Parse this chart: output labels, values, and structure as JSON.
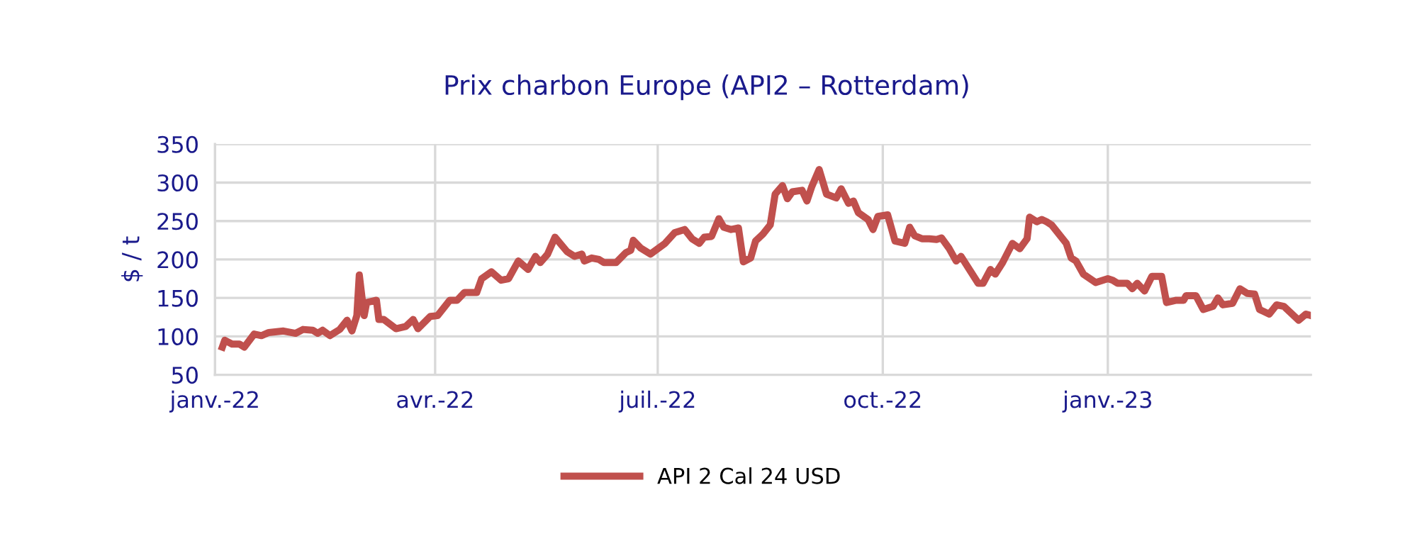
{
  "chart_data": {
    "type": "line",
    "title": "Prix charbon Europe (API2 – Rotterdam)",
    "ylabel": "$ / t",
    "x": [
      "2022-01-04",
      "2022-01-05",
      "2022-01-08",
      "2022-01-11",
      "2022-01-13",
      "2022-01-17",
      "2022-01-20",
      "2022-01-23",
      "2022-01-29",
      "2022-02-03",
      "2022-02-06",
      "2022-02-10",
      "2022-02-12",
      "2022-02-14",
      "2022-02-17",
      "2022-02-21",
      "2022-02-24",
      "2022-02-26",
      "2022-02-28",
      "2022-03-01",
      "2022-03-03",
      "2022-03-04",
      "2022-03-08",
      "2022-03-09",
      "2022-03-11",
      "2022-03-16",
      "2022-03-20",
      "2022-03-23",
      "2022-03-25",
      "2022-03-30",
      "2022-04-02",
      "2022-04-05",
      "2022-04-07",
      "2022-04-10",
      "2022-04-13",
      "2022-04-18",
      "2022-04-20",
      "2022-04-24",
      "2022-04-28",
      "2022-05-01",
      "2022-05-05",
      "2022-05-09",
      "2022-05-12",
      "2022-05-14",
      "2022-05-17",
      "2022-05-20",
      "2022-05-25",
      "2022-05-28",
      "2022-05-31",
      "2022-06-01",
      "2022-06-04",
      "2022-06-07",
      "2022-06-09",
      "2022-06-14",
      "2022-06-18",
      "2022-06-20",
      "2022-06-21",
      "2022-06-24",
      "2022-06-28",
      "2022-07-04",
      "2022-07-08",
      "2022-07-12",
      "2022-07-15",
      "2022-07-18",
      "2022-07-20",
      "2022-07-23",
      "2022-07-26",
      "2022-07-28",
      "2022-07-31",
      "2022-08-03",
      "2022-08-05",
      "2022-08-08",
      "2022-08-10",
      "2022-08-13",
      "2022-08-16",
      "2022-08-18",
      "2022-08-21",
      "2022-08-23",
      "2022-08-25",
      "2022-08-29",
      "2022-08-31",
      "2022-09-02",
      "2022-09-05",
      "2022-09-08",
      "2022-09-12",
      "2022-09-14",
      "2022-09-17",
      "2022-09-19",
      "2022-09-21",
      "2022-09-25",
      "2022-09-27",
      "2022-09-29",
      "2022-10-03",
      "2022-10-06",
      "2022-10-10",
      "2022-10-12",
      "2022-10-14",
      "2022-10-17",
      "2022-10-20",
      "2022-10-23",
      "2022-10-25",
      "2022-10-28",
      "2022-10-31",
      "2022-11-02",
      "2022-11-06",
      "2022-11-09",
      "2022-11-11",
      "2022-11-14",
      "2022-11-16",
      "2022-11-19",
      "2022-11-23",
      "2022-11-26",
      "2022-11-29",
      "2022-11-30",
      "2022-12-03",
      "2022-12-05",
      "2022-12-07",
      "2022-12-09",
      "2022-12-15",
      "2022-12-17",
      "2022-12-19",
      "2022-12-22",
      "2022-12-27",
      "2023-01-01",
      "2023-01-03",
      "2023-01-05",
      "2023-01-09",
      "2023-01-11",
      "2023-01-13",
      "2023-01-16",
      "2023-01-19",
      "2023-01-23",
      "2023-01-25",
      "2023-01-29",
      "2023-02-01",
      "2023-02-02",
      "2023-02-06",
      "2023-02-09",
      "2023-02-13",
      "2023-02-15",
      "2023-02-17",
      "2023-02-21",
      "2023-02-24",
      "2023-02-27",
      "2023-03-02",
      "2023-03-04",
      "2023-03-08",
      "2023-03-11",
      "2023-03-14",
      "2023-03-17",
      "2023-03-20",
      "2023-03-23",
      "2023-03-25"
    ],
    "series": [
      {
        "name": "API 2 Cal 24 USD",
        "color": "#c0504d",
        "values": [
          86,
          95,
          90,
          90,
          86,
          103,
          101,
          105,
          107,
          104,
          109,
          108,
          104,
          108,
          101,
          109,
          121,
          107,
          127,
          180,
          127,
          144,
          147,
          122,
          122,
          110,
          113,
          122,
          110,
          126,
          127,
          139,
          147,
          147,
          157,
          157,
          175,
          184,
          173,
          175,
          198,
          187,
          204,
          196,
          207,
          229,
          210,
          204,
          207,
          198,
          202,
          200,
          196,
          196,
          209,
          212,
          225,
          215,
          207,
          221,
          235,
          239,
          227,
          221,
          229,
          230,
          253,
          242,
          239,
          241,
          197,
          202,
          224,
          233,
          245,
          285,
          296,
          279,
          288,
          290,
          276,
          295,
          317,
          285,
          280,
          292,
          273,
          276,
          261,
          252,
          239,
          256,
          258,
          224,
          221,
          242,
          231,
          227,
          227,
          226,
          228,
          215,
          198,
          204,
          184,
          169,
          169,
          187,
          181,
          196,
          221,
          214,
          227,
          255,
          249,
          252,
          249,
          245,
          221,
          202,
          198,
          181,
          170,
          175,
          173,
          169,
          169,
          162,
          169,
          159,
          178,
          178,
          144,
          147,
          147,
          153,
          153,
          135,
          139,
          150,
          141,
          143,
          162,
          156,
          155,
          135,
          129,
          141,
          139,
          130,
          121,
          129,
          127
        ]
      }
    ],
    "xlim": [
      "2022-01-01",
      "2023-03-25"
    ],
    "xticks": [
      {
        "value": "2022-01-01",
        "label": "janv.-22"
      },
      {
        "value": "2022-04-01",
        "label": "avr.-22"
      },
      {
        "value": "2022-07-01",
        "label": "juil.-22"
      },
      {
        "value": "2022-10-01",
        "label": "oct.-22"
      },
      {
        "value": "2023-01-01",
        "label": "janv.-23"
      }
    ],
    "ylim": [
      50,
      350
    ],
    "yticks": [
      50,
      100,
      150,
      200,
      250,
      300,
      350
    ],
    "grid": true,
    "legend": "bottom",
    "marker": "none",
    "line_style": "solid"
  }
}
